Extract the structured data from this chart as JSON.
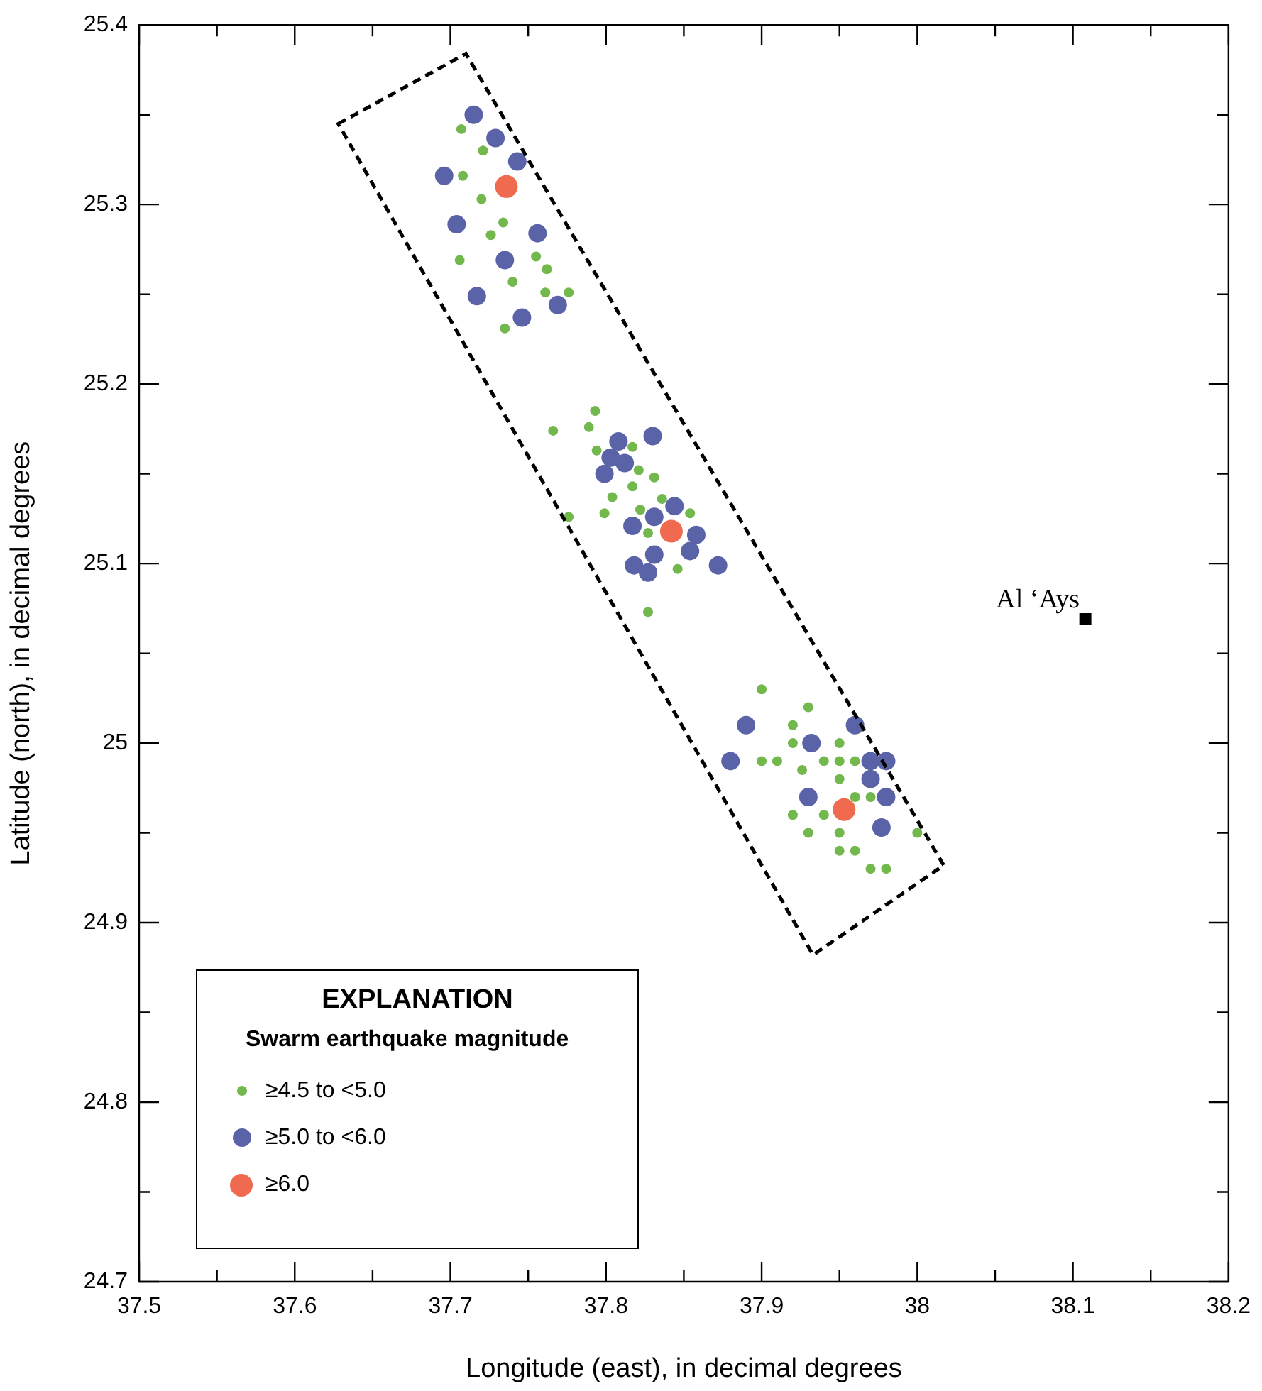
{
  "chart_data": {
    "type": "scatter",
    "xlabel": "Longitude (east), in decimal degrees",
    "ylabel": "Latitude (north), in decimal degrees",
    "legend_title": "EXPLANATION",
    "annotations": [
      "Swarm earthquake magnitude",
      {
        "text": "Al ‘Ays",
        "x": 38.108,
        "y": 25.069
      }
    ],
    "xlim": [
      37.5,
      38.2
    ],
    "ylim": [
      24.7,
      25.4
    ],
    "xticks": [
      37.5,
      {
        "value": 37.55,
        "label": null
      },
      37.6,
      {
        "value": 37.65,
        "label": null
      },
      37.7,
      {
        "value": 37.75,
        "label": null
      },
      37.8,
      {
        "value": 37.85,
        "label": null
      },
      37.9,
      {
        "value": 37.95,
        "label": null
      },
      38,
      {
        "value": 38.05,
        "label": null
      },
      38.1,
      {
        "value": 38.15,
        "label": null
      },
      38.2
    ],
    "yticks": [
      24.7,
      {
        "value": 24.75,
        "label": null
      },
      24.8,
      {
        "value": 24.85,
        "label": null
      },
      24.9,
      {
        "value": 24.95,
        "label": null
      },
      25,
      {
        "value": 25.05,
        "label": null
      },
      25.1,
      {
        "value": 25.15,
        "label": null
      },
      25.2,
      {
        "value": 25.25,
        "label": null
      },
      25.3,
      {
        "value": 25.35,
        "label": null
      },
      25.4
    ],
    "grid": false,
    "legend": "bottom left",
    "marker": "circle",
    "series": [
      {
        "name": "≥4.5 to <5.0",
        "color": "#72b84c",
        "x": [
          37.707,
          37.721,
          37.708,
          37.72,
          37.734,
          37.726,
          37.706,
          37.755,
          37.762,
          37.74,
          37.761,
          37.776,
          37.735,
          37.793,
          37.766,
          37.789,
          37.817,
          37.794,
          37.821,
          37.831,
          37.817,
          37.804,
          37.836,
          37.822,
          37.799,
          37.854,
          37.776,
          37.827,
          37.846,
          37.827,
          37.9,
          37.93,
          37.92,
          37.92,
          37.95,
          37.9,
          37.91,
          37.94,
          37.95,
          37.96,
          37.926,
          37.95,
          37.96,
          37.97,
          37.92,
          37.94,
          37.93,
          37.95,
          38,
          37.95,
          37.96,
          37.97,
          37.98
        ],
        "values": [
          25.342,
          25.33,
          25.316,
          25.303,
          25.29,
          25.283,
          25.269,
          25.271,
          25.264,
          25.257,
          25.251,
          25.251,
          25.231,
          25.185,
          25.174,
          25.176,
          25.165,
          25.163,
          25.152,
          25.148,
          25.143,
          25.137,
          25.136,
          25.13,
          25.128,
          25.128,
          25.126,
          25.117,
          25.097,
          25.073,
          25.03,
          25.02,
          25.01,
          25,
          25,
          24.99,
          24.99,
          24.99,
          24.99,
          24.99,
          24.985,
          24.98,
          24.97,
          24.97,
          24.96,
          24.96,
          24.95,
          24.95,
          24.95,
          24.94,
          24.94,
          24.93,
          24.93
        ]
      },
      {
        "name": "≥5.0 to <6.0",
        "color": "#5a63a8",
        "x": [
          37.715,
          37.729,
          37.743,
          37.696,
          37.704,
          37.756,
          37.735,
          37.717,
          37.769,
          37.746,
          37.808,
          37.83,
          37.803,
          37.812,
          37.799,
          37.844,
          37.831,
          37.817,
          37.858,
          37.854,
          37.831,
          37.818,
          37.827,
          37.872,
          37.89,
          37.96,
          37.932,
          37.88,
          37.97,
          37.98,
          37.97,
          37.93,
          37.98,
          37.977
        ],
        "values": [
          25.35,
          25.337,
          25.324,
          25.316,
          25.289,
          25.284,
          25.269,
          25.249,
          25.244,
          25.237,
          25.168,
          25.171,
          25.159,
          25.156,
          25.15,
          25.132,
          25.126,
          25.121,
          25.116,
          25.107,
          25.105,
          25.099,
          25.095,
          25.099,
          25.01,
          25.01,
          25,
          24.99,
          24.99,
          24.99,
          24.98,
          24.97,
          24.97,
          24.953
        ]
      },
      {
        "name": "≥6.0",
        "color": "#ef6a4f",
        "x": [
          37.736,
          37.842,
          37.953
        ],
        "values": [
          25.31,
          25.118,
          24.963
        ]
      },
      {
        "color": "#000000",
        "marker": "square",
        "x": [
          38.108
        ],
        "values": [
          25.069
        ]
      }
    ]
  }
}
